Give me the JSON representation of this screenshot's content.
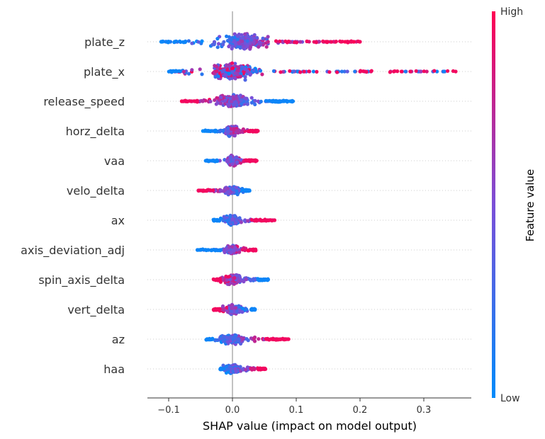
{
  "chart_data": {
    "type": "scatter",
    "subtype": "shap-beeswarm",
    "xlabel": "SHAP value (impact on model output)",
    "xlim": [
      -0.135,
      0.37
    ],
    "xticks": [
      {
        "value": -0.1,
        "label": "−0.1"
      },
      {
        "value": 0.0,
        "label": "0.0"
      },
      {
        "value": 0.1,
        "label": "0.1"
      },
      {
        "value": 0.2,
        "label": "0.2"
      },
      {
        "value": 0.3,
        "label": "0.3"
      }
    ],
    "colorbar": {
      "title": "Feature value",
      "high_label": "High",
      "low_label": "Low",
      "high_color": "#ff0052",
      "low_color": "#008bfb"
    },
    "features": [
      {
        "name": "plate_z",
        "min": -0.113,
        "max": 0.2,
        "core_min": -0.07,
        "core_max": 0.06,
        "width": 1.0,
        "center": 0.02,
        "trend": 1,
        "outliers": [
          0.18,
          0.2
        ]
      },
      {
        "name": "plate_x",
        "min": -0.1,
        "max": 0.35,
        "core_min": -0.08,
        "core_max": 0.06,
        "width": 1.0,
        "center": 0.0,
        "trend": 0,
        "outliers": [
          0.2,
          0.35
        ]
      },
      {
        "name": "release_speed",
        "min": -0.08,
        "max": 0.095,
        "core_min": -0.05,
        "core_max": 0.05,
        "width": 0.75,
        "center": 0.0,
        "trend": -1,
        "outliers": [
          0.07,
          0.08,
          0.095
        ]
      },
      {
        "name": "horz_delta",
        "min": -0.047,
        "max": 0.04,
        "core_min": -0.025,
        "core_max": 0.025,
        "width": 0.55,
        "center": 0.0,
        "trend": 1,
        "outliers": [
          0.04
        ]
      },
      {
        "name": "vaa",
        "min": -0.042,
        "max": 0.038,
        "core_min": -0.02,
        "core_max": 0.02,
        "width": 0.55,
        "center": 0.0,
        "trend": 1,
        "outliers": [
          -0.042,
          -0.028,
          0.038
        ]
      },
      {
        "name": "velo_delta",
        "min": -0.055,
        "max": 0.027,
        "core_min": -0.03,
        "core_max": 0.02,
        "width": 0.5,
        "center": 0.0,
        "trend": -1,
        "outliers": []
      },
      {
        "name": "ax",
        "min": -0.03,
        "max": 0.066,
        "core_min": -0.02,
        "core_max": 0.03,
        "width": 0.55,
        "center": 0.0,
        "trend": 1,
        "outliers": [
          0.05,
          0.055,
          0.066
        ]
      },
      {
        "name": "axis_deviation_adj",
        "min": -0.055,
        "max": 0.037,
        "core_min": -0.015,
        "core_max": 0.03,
        "width": 0.5,
        "center": 0.0,
        "trend": 1,
        "outliers": [
          -0.055,
          -0.038,
          -0.025
        ]
      },
      {
        "name": "spin_axis_delta",
        "min": -0.03,
        "max": 0.056,
        "core_min": -0.02,
        "core_max": 0.04,
        "width": 0.55,
        "center": 0.0,
        "trend": -1,
        "outliers": [
          0.056
        ]
      },
      {
        "name": "vert_delta",
        "min": -0.03,
        "max": 0.036,
        "core_min": -0.02,
        "core_max": 0.03,
        "width": 0.55,
        "center": 0.0,
        "trend": -1,
        "outliers": []
      },
      {
        "name": "az",
        "min": -0.042,
        "max": 0.088,
        "core_min": -0.03,
        "core_max": 0.05,
        "width": 0.55,
        "center": 0.0,
        "trend": 1,
        "outliers": [
          0.07,
          0.088
        ]
      },
      {
        "name": "haa",
        "min": -0.02,
        "max": 0.052,
        "core_min": -0.015,
        "core_max": 0.04,
        "width": 0.5,
        "center": 0.0,
        "trend": 1,
        "outliers": []
      }
    ]
  }
}
